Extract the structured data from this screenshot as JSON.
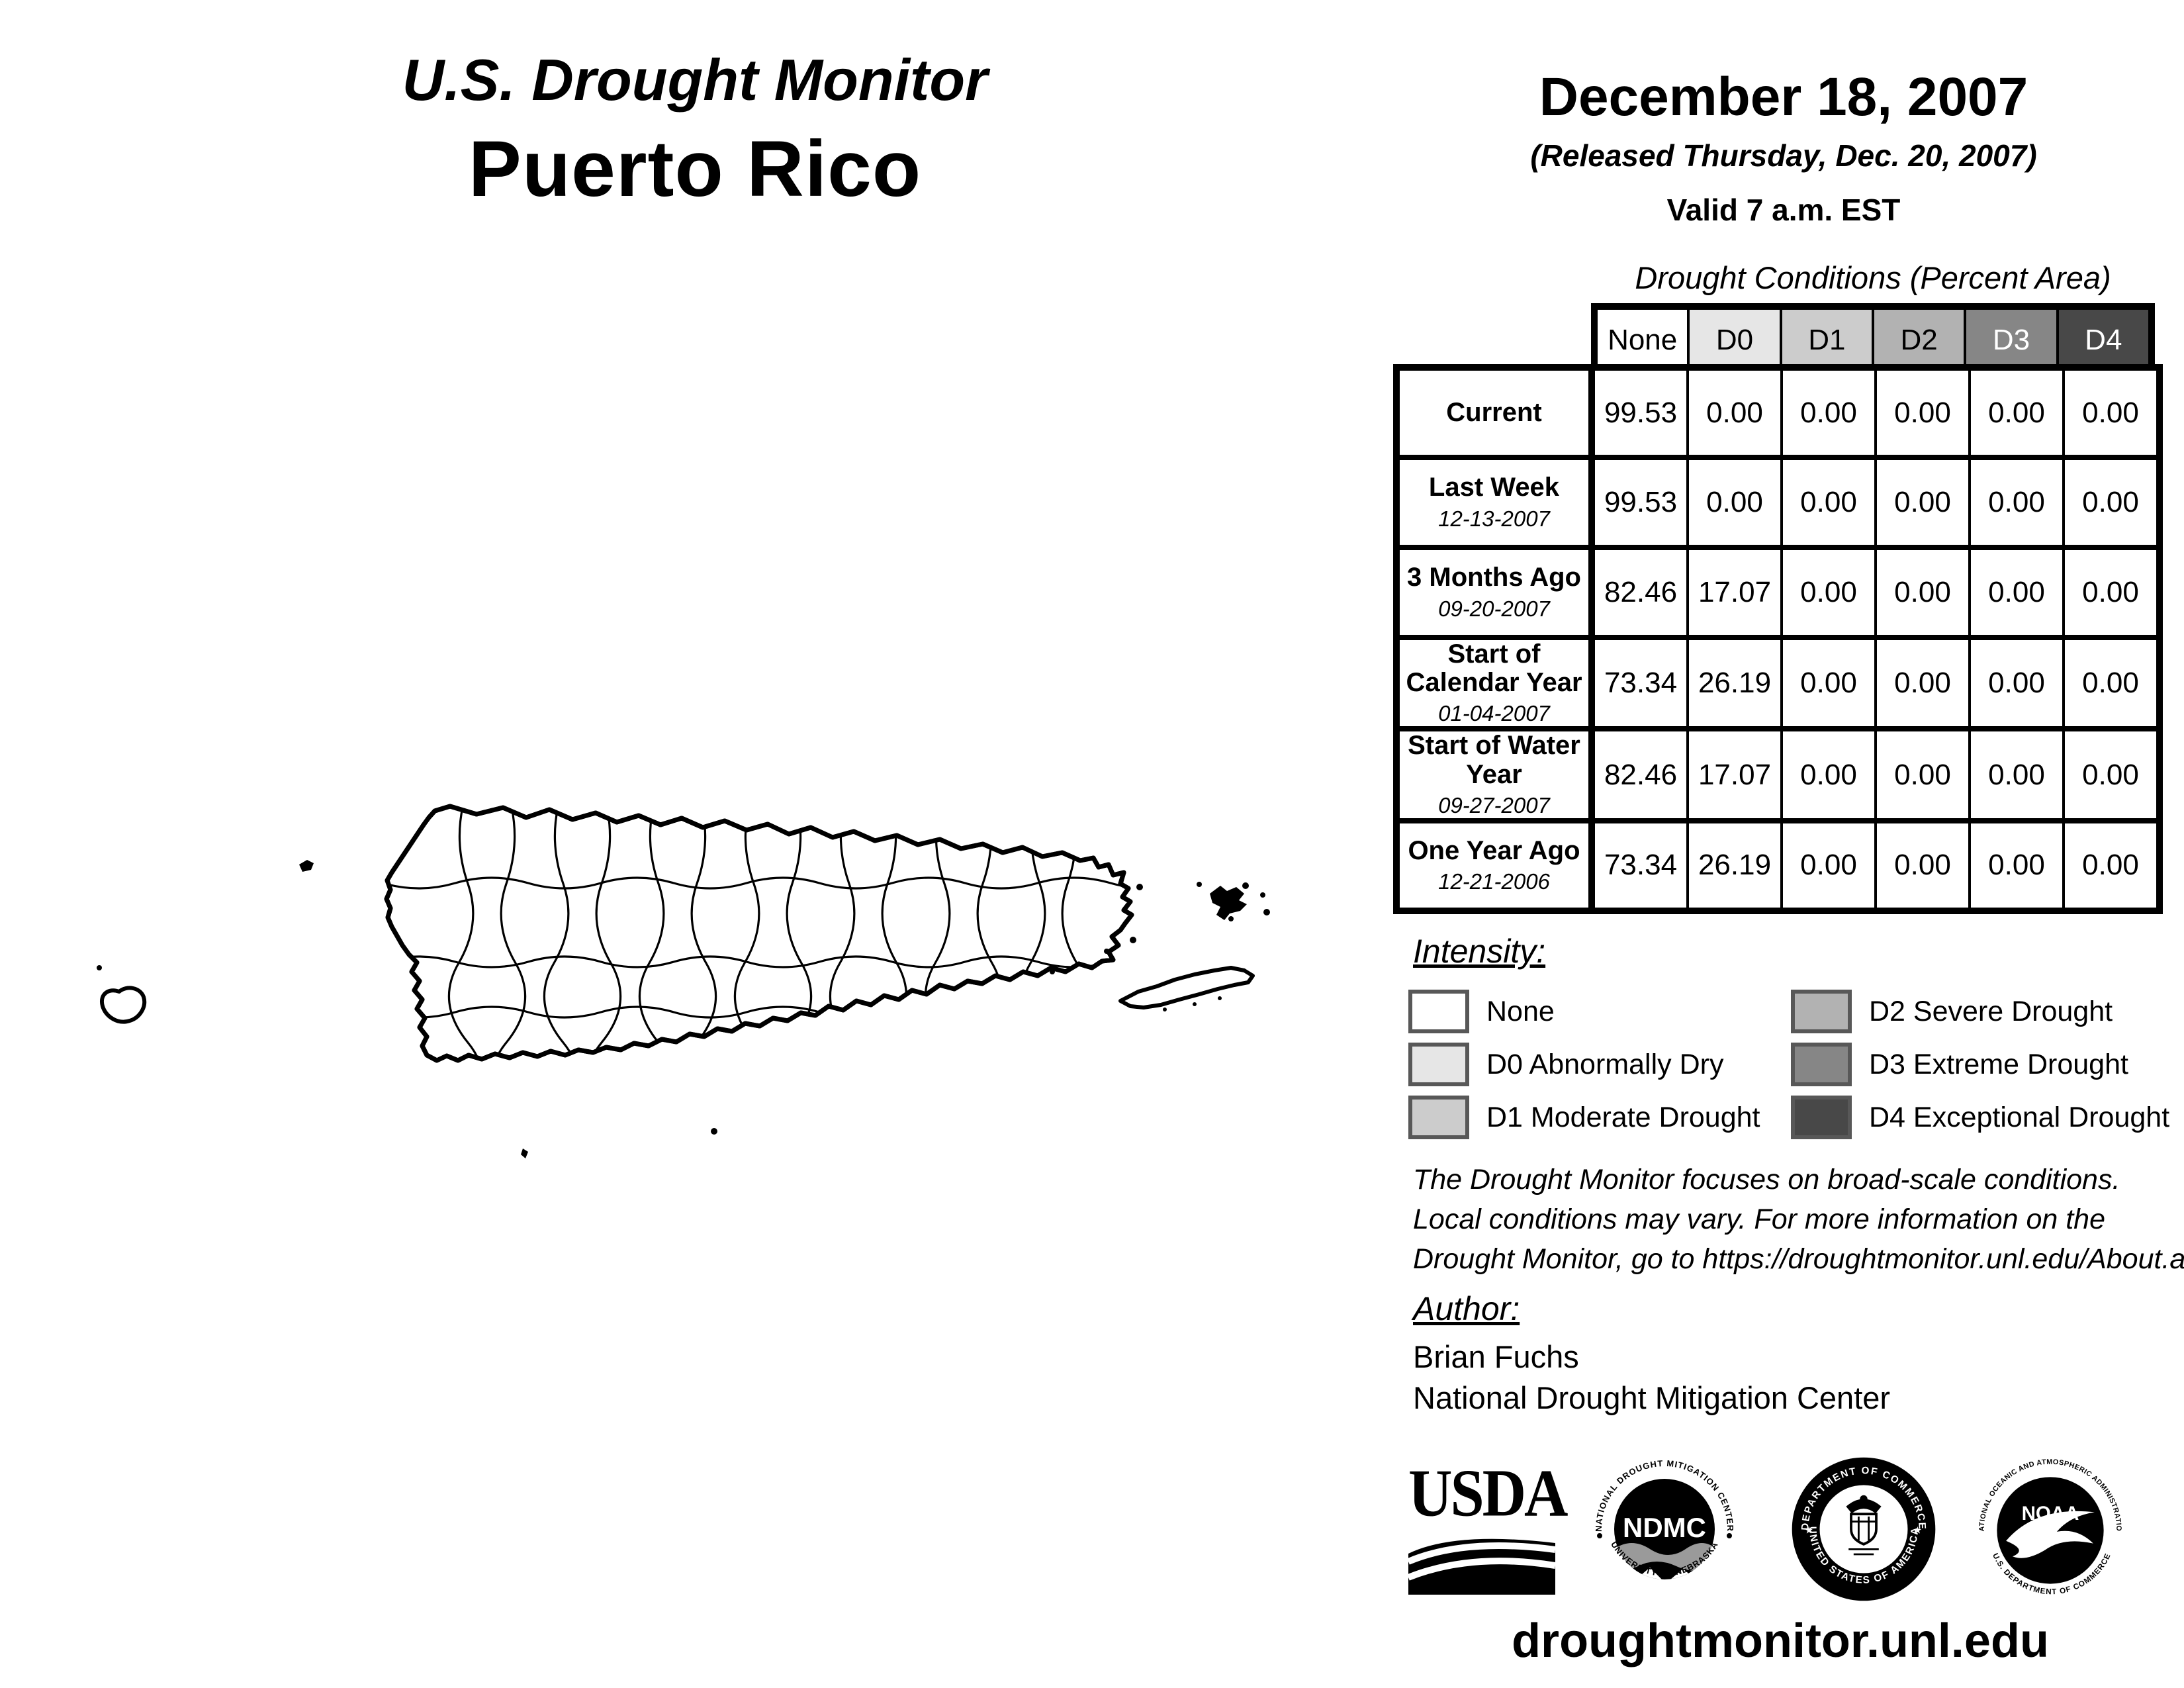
{
  "header": {
    "title": "U.S. Drought Monitor",
    "region": "Puerto Rico",
    "date": "December 18, 2007",
    "released": "(Released Thursday, Dec. 20, 2007)",
    "valid": "Valid 7 a.m. EST"
  },
  "table": {
    "title": "Drought Conditions (Percent Area)",
    "columns": [
      "None",
      "D0",
      "D1",
      "D2",
      "D3",
      "D4"
    ],
    "column_colors": [
      "#ffffff",
      "#e6e6e6",
      "#cccccc",
      "#b2b2b2",
      "#868686",
      "#484848"
    ],
    "column_text_colors": [
      "#000000",
      "#000000",
      "#000000",
      "#000000",
      "#ffffff",
      "#ffffff"
    ],
    "rows": [
      {
        "label": "Current",
        "sublabel": "",
        "values": [
          "99.53",
          "0.00",
          "0.00",
          "0.00",
          "0.00",
          "0.00"
        ]
      },
      {
        "label": "Last Week",
        "sublabel": "12-13-2007",
        "values": [
          "99.53",
          "0.00",
          "0.00",
          "0.00",
          "0.00",
          "0.00"
        ]
      },
      {
        "label": "3 Months Ago",
        "sublabel": "09-20-2007",
        "values": [
          "82.46",
          "17.07",
          "0.00",
          "0.00",
          "0.00",
          "0.00"
        ]
      },
      {
        "label": "Start of Calendar Year",
        "sublabel": "01-04-2007",
        "values": [
          "73.34",
          "26.19",
          "0.00",
          "0.00",
          "0.00",
          "0.00"
        ]
      },
      {
        "label": "Start of Water Year",
        "sublabel": "09-27-2007",
        "values": [
          "82.46",
          "17.07",
          "0.00",
          "0.00",
          "0.00",
          "0.00"
        ]
      },
      {
        "label": "One Year Ago",
        "sublabel": "12-21-2006",
        "values": [
          "73.34",
          "26.19",
          "0.00",
          "0.00",
          "0.00",
          "0.00"
        ]
      }
    ]
  },
  "legend": {
    "heading": "Intensity:",
    "items": [
      {
        "label": "None",
        "color": "#ffffff"
      },
      {
        "label": "D0 Abnormally Dry",
        "color": "#e6e6e6"
      },
      {
        "label": "D1 Moderate Drought",
        "color": "#cccccc"
      },
      {
        "label": "D2 Severe Drought",
        "color": "#b2b2b2"
      },
      {
        "label": "D3 Extreme Drought",
        "color": "#868686"
      },
      {
        "label": "D4 Exceptional Drought",
        "color": "#484848"
      }
    ]
  },
  "disclaimer": {
    "line1": "The Drought Monitor focuses on broad-scale conditions.",
    "line2": "Local conditions may vary. For more information on the",
    "line3": "Drought Monitor, go to https://droughtmonitor.unl.edu/About.aspx"
  },
  "author": {
    "heading": "Author:",
    "name": "Brian Fuchs",
    "org": "National Drought Mitigation Center"
  },
  "logos": {
    "usda_text": "USDA",
    "ndmc_arc_top": "NATIONAL DROUGHT MITIGATION CENTER",
    "ndmc_center": "NDMC",
    "ndmc_arc_bottom": "UNIVERSITY OF NEBRASKA",
    "doc_arc_top": "DEPARTMENT OF COMMERCE",
    "doc_arc_bottom": "UNITED STATES OF AMERICA",
    "noaa_arc_top": "NATIONAL OCEANIC AND ATMOSPHERIC ADMINISTRATION",
    "noaa_text": "NOAA",
    "noaa_arc_bottom": "U.S. DEPARTMENT OF COMMERCE"
  },
  "footer": {
    "url": "droughtmonitor.unl.edu"
  }
}
